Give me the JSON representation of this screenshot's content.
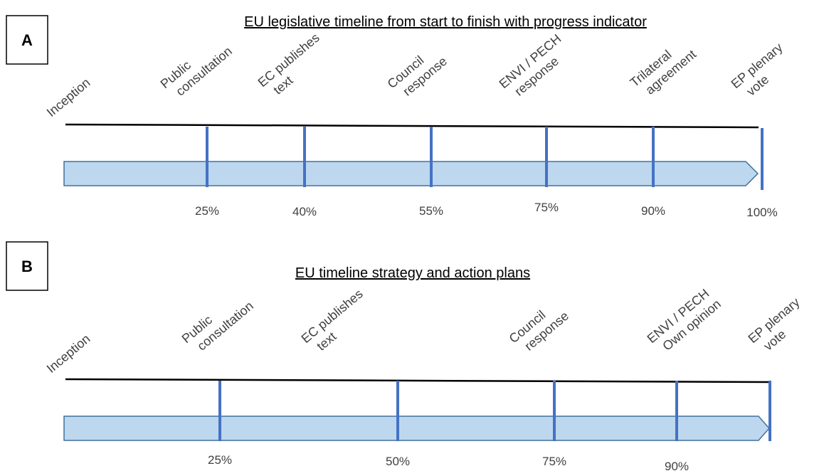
{
  "panels": [
    {
      "id": "A",
      "title": "EU legislative timeline from start to finish with progress indicator",
      "stages": [
        {
          "label": [
            "Inception"
          ],
          "percent": null
        },
        {
          "label": [
            "Public",
            "consultation"
          ],
          "percent": "25%"
        },
        {
          "label": [
            "EC publishes",
            "text"
          ],
          "percent": "40%"
        },
        {
          "label": [
            "Council",
            "response"
          ],
          "percent": "55%"
        },
        {
          "label": [
            "ENVI / PECH",
            "response"
          ],
          "percent": "75%"
        },
        {
          "label": [
            "Trilateral",
            "agreement"
          ],
          "percent": "90%"
        },
        {
          "label": [
            "EP plenary",
            "vote"
          ],
          "percent": "100%"
        }
      ]
    },
    {
      "id": "B",
      "title": "EU timeline strategy and action plans",
      "stages": [
        {
          "label": [
            "Inception"
          ],
          "percent": null
        },
        {
          "label": [
            "Public",
            "consultation"
          ],
          "percent": "25%"
        },
        {
          "label": [
            "EC publishes",
            "text"
          ],
          "percent": "50%"
        },
        {
          "label": [
            "Council",
            "response"
          ],
          "percent": "75%"
        },
        {
          "label": [
            "ENVI / PECH",
            "Own opinion"
          ],
          "percent": "90%"
        },
        {
          "label": [
            "EP plenary",
            "vote"
          ],
          "percent": null
        }
      ]
    }
  ],
  "colors": {
    "bar_fill": "#bdd7ee",
    "bar_stroke": "#41719c",
    "marker": "#4472c4",
    "line": "#000000",
    "text": "#404040"
  }
}
